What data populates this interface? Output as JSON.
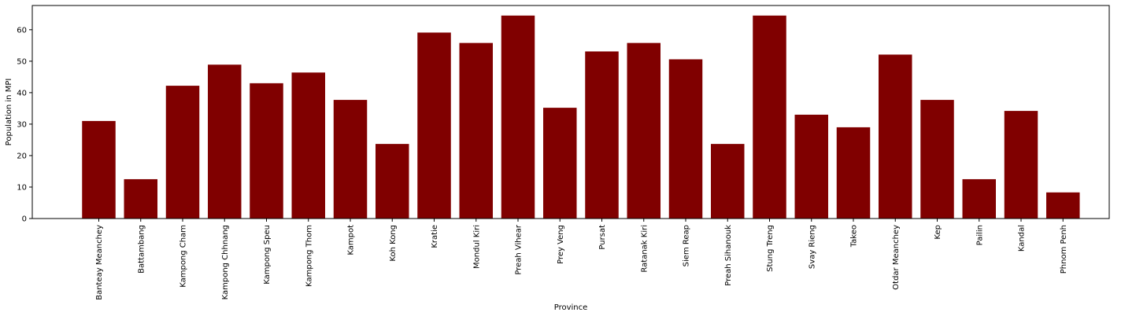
{
  "chart_data": {
    "type": "bar",
    "title": "",
    "xlabel": "Province",
    "ylabel": "Population in MPI",
    "categories": [
      "Banteay Meanchey",
      "Battambang",
      "Kampong Cham",
      "Kampong Chhnang",
      "Kampong Speu",
      "Kampong Thom",
      "Kampot",
      "Koh Kong",
      "Kratie",
      "Mondul Kiri",
      "Preah Vihear",
      "Prey Veng",
      "Pursat",
      "Ratanak Kiri",
      "Siem Reap",
      "Preah Sihanouk",
      "Stung Treng",
      "Svay Rieng",
      "Takeo",
      "Otdar Meanchey",
      "Kep",
      "Pailin",
      "Kandal",
      "Phnom Penh"
    ],
    "values": [
      31,
      12.5,
      42.2,
      48.9,
      43,
      46.4,
      37.7,
      23.7,
      59.1,
      55.8,
      64.5,
      35.2,
      53.1,
      55.8,
      50.6,
      23.7,
      64.5,
      33,
      29,
      52.1,
      37.7,
      12.5,
      34.2,
      8.3
    ],
    "ylim": [
      0,
      67.7
    ],
    "yticks": [
      0,
      10,
      20,
      30,
      40,
      50,
      60
    ],
    "bar_color": "#800000",
    "grid": false,
    "legend": "none"
  }
}
